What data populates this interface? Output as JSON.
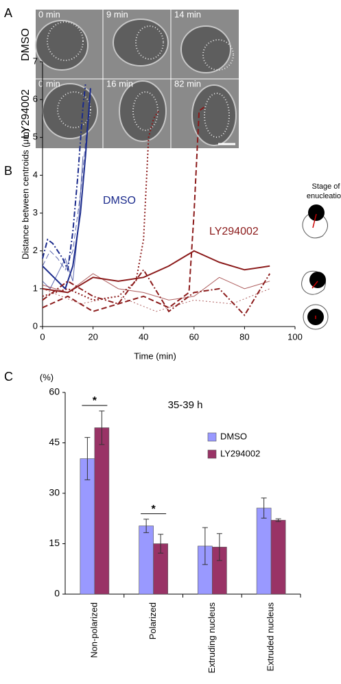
{
  "panel_labels": [
    "A",
    "B",
    "C"
  ],
  "panel_a": {
    "rows": [
      {
        "label": "DMSO",
        "frames": [
          "0 min",
          "9 min",
          "14 min"
        ]
      },
      {
        "label": "LY294002",
        "frames": [
          "0 min",
          "16 min",
          "82 min"
        ]
      }
    ]
  },
  "stage_label": [
    "Stage of",
    "enucleation"
  ],
  "chart_data": [
    {
      "type": "line",
      "y_label": "Distance between centroids (μm)",
      "x_label": "Time (min)",
      "xlim": [
        0,
        100
      ],
      "xticks": [
        0,
        20,
        40,
        60,
        80,
        100
      ],
      "ylim": [
        0,
        7
      ],
      "yticks": [
        0,
        1,
        2,
        3,
        4,
        5,
        6,
        7
      ],
      "series": [
        {
          "name": "DMSO",
          "color": "#1a2a8c",
          "lines": [
            {
              "style": "solid",
              "weight": "thick",
              "x": [
                0,
                3,
                6,
                9,
                12,
                15,
                17,
                19
              ],
              "values": [
                1.6,
                1.4,
                1.2,
                1.0,
                1.6,
                3.0,
                4.5,
                6.3
              ]
            },
            {
              "style": "dashdot",
              "weight": "thick",
              "x": [
                0,
                2,
                4,
                6,
                8,
                10,
                12,
                14,
                16,
                17
              ],
              "values": [
                1.8,
                2.3,
                2.2,
                2.0,
                1.8,
                1.5,
                2.5,
                4.0,
                5.8,
                6.4
              ]
            },
            {
              "style": "dashed",
              "weight": "thin",
              "x": [
                0,
                3,
                6,
                9,
                12,
                15,
                18
              ],
              "values": [
                1.6,
                2.0,
                1.8,
                1.5,
                2.0,
                3.5,
                5.5
              ]
            },
            {
              "style": "solid",
              "weight": "thin",
              "x": [
                0,
                3,
                6,
                9,
                12,
                14,
                16
              ],
              "values": [
                1.2,
                1.0,
                1.4,
                1.8,
                1.2,
                2.5,
                4.5
              ]
            }
          ]
        },
        {
          "name": "LY294002",
          "color": "#8b1a1a",
          "lines": [
            {
              "style": "solid",
              "weight": "thick",
              "x": [
                0,
                10,
                20,
                30,
                40,
                50,
                60,
                70,
                80,
                90
              ],
              "values": [
                1.0,
                0.9,
                1.3,
                1.2,
                1.3,
                1.6,
                2.0,
                1.7,
                1.5,
                1.6
              ]
            },
            {
              "style": "dotted",
              "weight": "thick",
              "x": [
                0,
                10,
                20,
                30,
                37,
                40,
                42,
                44,
                46
              ],
              "values": [
                0.8,
                1.0,
                0.7,
                0.8,
                1.2,
                2.3,
                5.0,
                5.5,
                5.7
              ]
            },
            {
              "style": "dashed",
              "weight": "thick",
              "x": [
                0,
                10,
                20,
                30,
                40,
                50,
                58,
                60,
                62,
                64
              ],
              "values": [
                0.5,
                0.8,
                0.4,
                0.6,
                0.8,
                0.5,
                0.9,
                3.0,
                5.7,
                5.8
              ]
            },
            {
              "style": "solid",
              "weight": "thin",
              "x": [
                0,
                10,
                20,
                30,
                40,
                50,
                60,
                70,
                80,
                90
              ],
              "values": [
                1.1,
                0.9,
                1.4,
                1.0,
                0.9,
                0.7,
                0.8,
                1.3,
                1.0,
                1.2
              ]
            },
            {
              "style": "dashdot",
              "weight": "thick",
              "x": [
                0,
                10,
                20,
                30,
                40,
                50,
                60,
                70,
                80,
                90
              ],
              "values": [
                0.7,
                1.2,
                0.8,
                0.6,
                1.5,
                0.4,
                0.9,
                1.0,
                0.3,
                1.4
              ]
            },
            {
              "style": "dotted",
              "weight": "thin",
              "x": [
                0,
                15,
                30,
                45,
                60,
                75,
                90
              ],
              "values": [
                1.0,
                0.6,
                0.8,
                0.4,
                0.7,
                0.6,
                1.0
              ]
            }
          ]
        }
      ]
    },
    {
      "type": "bar",
      "title": "35-39 h",
      "y_label": "(%)",
      "categories": [
        "Non-polarized",
        "Polarized",
        "Extruding nucleus",
        "Extruded nucleus"
      ],
      "ylim": [
        0,
        60
      ],
      "yticks": [
        0,
        15,
        30,
        45,
        60
      ],
      "annotations": [
        "*",
        "*"
      ],
      "series": [
        {
          "name": "DMSO",
          "color": "#9999ff",
          "values": [
            40.3,
            20.3,
            14.3,
            25.6
          ],
          "errors": [
            6.3,
            2.0,
            5.5,
            3.0
          ]
        },
        {
          "name": "LY294002",
          "color": "#993366",
          "values": [
            49.5,
            15.0,
            14.0,
            22.0
          ],
          "errors": [
            5.0,
            2.8,
            4.0,
            0.4
          ]
        }
      ]
    }
  ]
}
